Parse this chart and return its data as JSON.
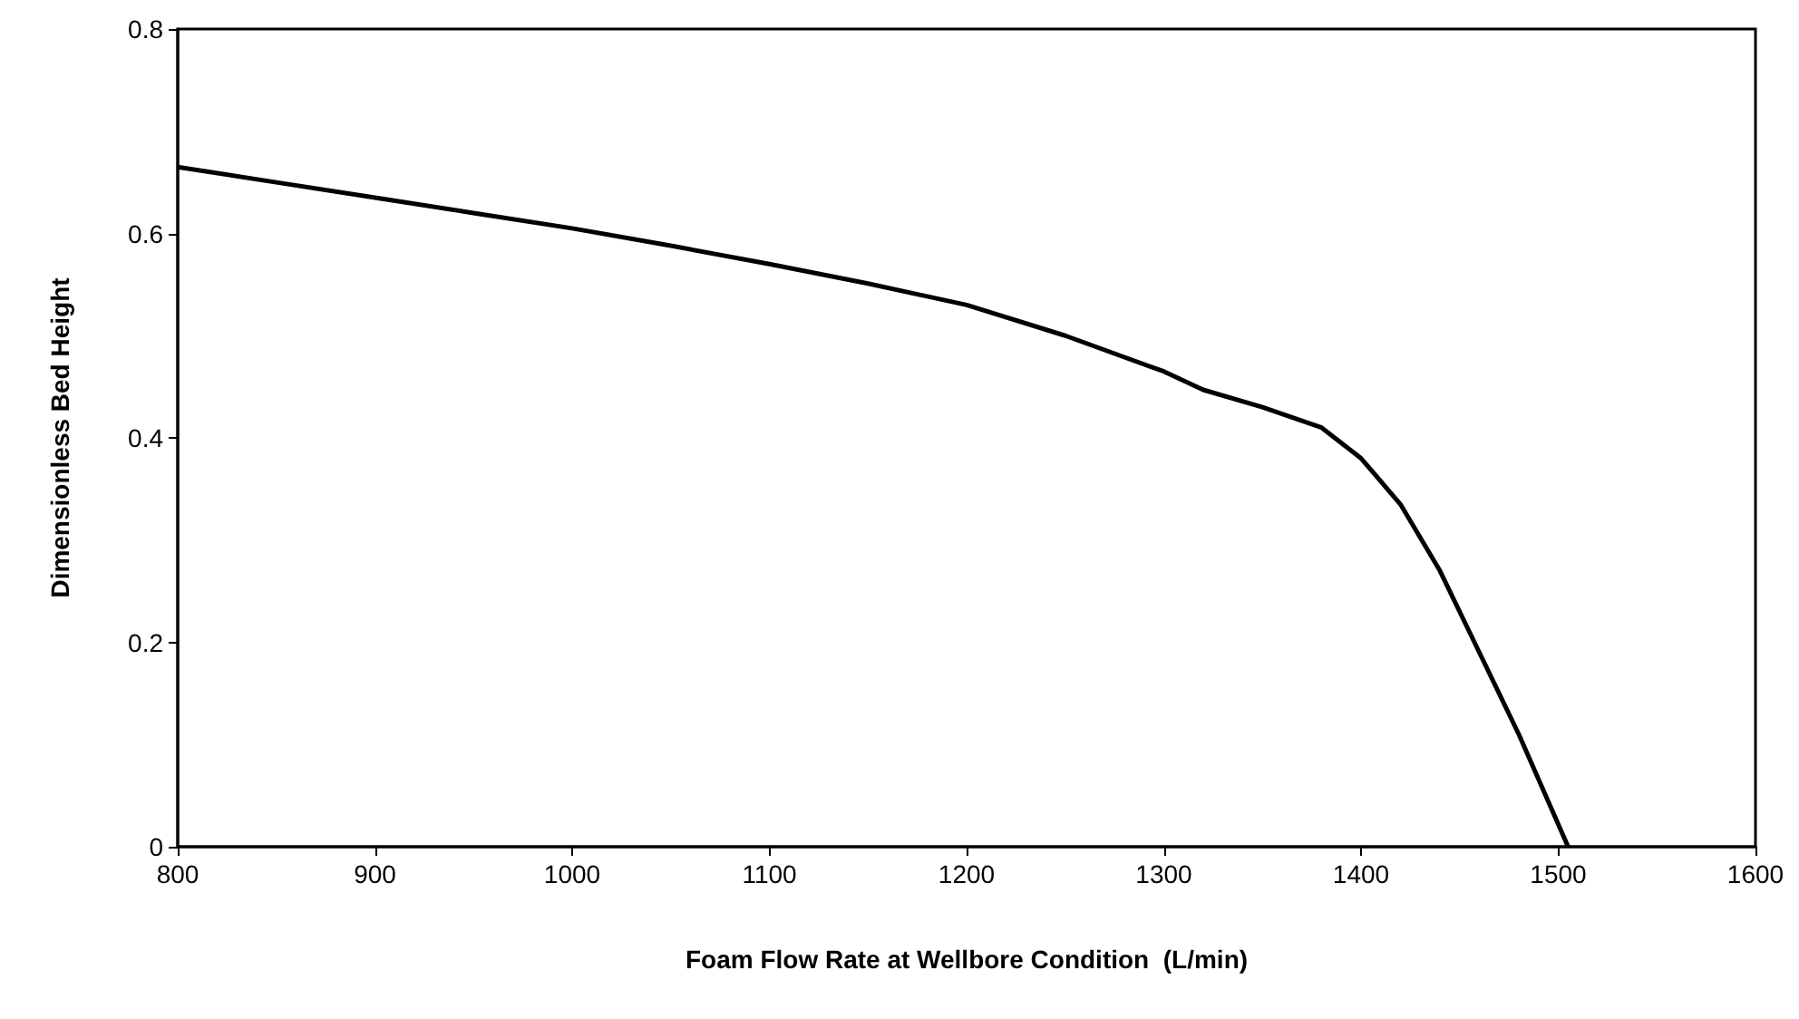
{
  "chart_data": {
    "type": "line",
    "xlabel": "Foam Flow Rate at Wellbore Condition  (L/min)",
    "ylabel": "Dimensionless Bed Height",
    "x": [
      800,
      850,
      900,
      950,
      1000,
      1050,
      1100,
      1150,
      1200,
      1250,
      1300,
      1320,
      1350,
      1380,
      1400,
      1420,
      1440,
      1460,
      1480,
      1505
    ],
    "series": [
      {
        "color": "#000000",
        "values": [
          0.665,
          0.65,
          0.635,
          0.62,
          0.605,
          0.588,
          0.57,
          0.551,
          0.53,
          0.5,
          0.465,
          0.447,
          0.43,
          0.41,
          0.38,
          0.335,
          0.27,
          0.19,
          0.11,
          0.0
        ]
      }
    ],
    "xlim": [
      800,
      1600
    ],
    "xticks": [
      800,
      900,
      1000,
      1100,
      1200,
      1300,
      1400,
      1500,
      1600
    ],
    "ylim": [
      0,
      0.8
    ],
    "yticks": [
      0,
      0.2,
      0.4,
      0.6,
      0.8
    ],
    "grid": false,
    "marker": "none",
    "line_style": "solid"
  }
}
